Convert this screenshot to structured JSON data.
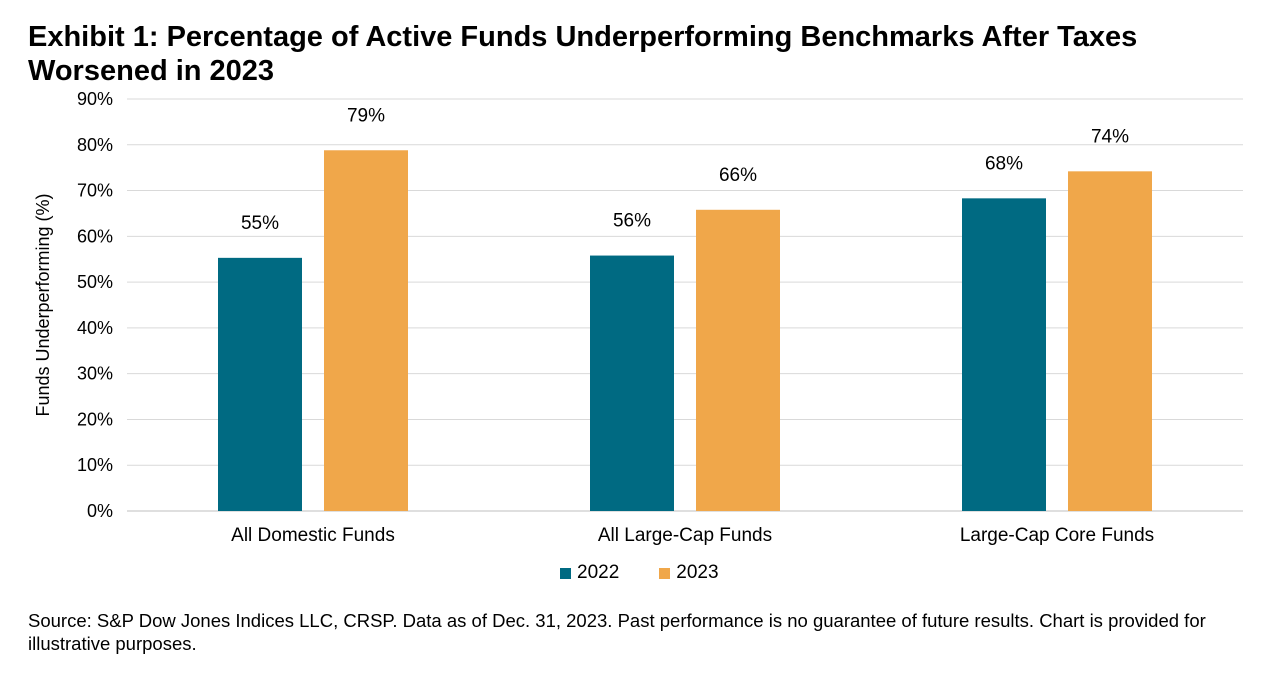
{
  "title": "Exhibit 1: Percentage of Active Funds Underperforming Benchmarks After Taxes Worsened in 2023",
  "source": "Source: S&P Dow Jones Indices LLC, CRSP. Data as of Dec. 31, 2023. Past performance is no guarantee of future results. Chart is provided for illustrative purposes.",
  "colors": {
    "2022": "#006a82",
    "2023": "#f0a74a",
    "grid": "#d9d9d9",
    "axis": "#bfbfbf"
  },
  "chart_data": {
    "type": "bar",
    "categories": [
      "All Domestic Funds",
      "All Large-Cap Funds",
      "Large-Cap Core Funds"
    ],
    "series": [
      {
        "name": "2022",
        "values": [
          55.3,
          55.8,
          68.3
        ],
        "labels": [
          "55%",
          "56%",
          "68%"
        ]
      },
      {
        "name": "2023",
        "values": [
          78.8,
          65.8,
          74.2
        ],
        "labels": [
          "79%",
          "66%",
          "74%"
        ]
      }
    ],
    "ylabel": "Funds Underperforming (%)",
    "ylim": [
      0,
      90
    ],
    "yticks": [
      "0%",
      "10%",
      "20%",
      "30%",
      "40%",
      "50%",
      "60%",
      "70%",
      "80%",
      "90%"
    ],
    "grid": true,
    "legend": "bottom"
  }
}
